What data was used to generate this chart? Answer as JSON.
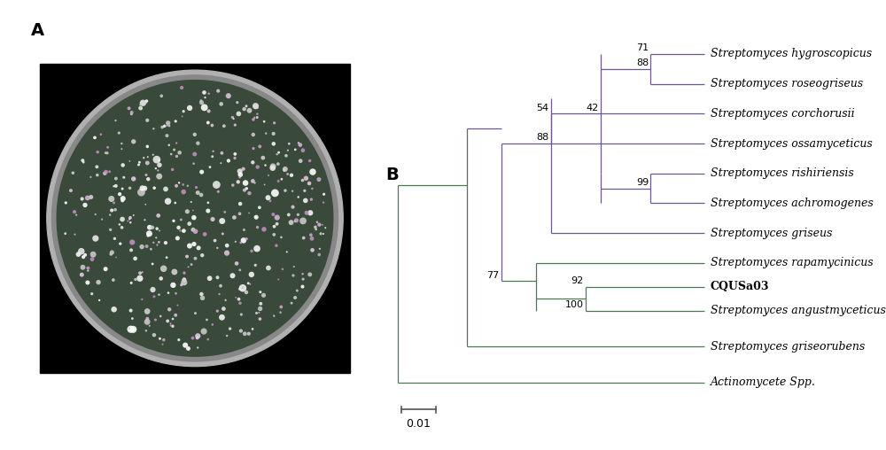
{
  "panel_A_label": "A",
  "panel_B_label": "B",
  "tree_line_color": "#5a5a7a",
  "tree_line_color2": "#4a7a4a",
  "background_color": "#ffffff",
  "font_size": 9,
  "bold_taxa": [
    "CQUSa03"
  ],
  "italic_taxa": [
    "Streptomyces hygroscopicus",
    "Streptomyces roseogriseus",
    "Streptomyces corchorusii",
    "Streptomyces ossamyceticus",
    "Streptomyces rishiriensis",
    "Streptomyces achromogenes",
    "Streptomyces griseus",
    "Streptomyces rapamycinicus",
    "Streptomyces angustmyceticus",
    "Streptomyces griseorubens",
    "Actinomycete Spp."
  ],
  "scale_bar_label": "0.01",
  "petri_bg": "#000000",
  "petri_rim_outer": "#b0b0b0",
  "petri_rim_inner": "#888888",
  "petri_agar": "#3a4a3a",
  "colony_colors": [
    "#ffffff",
    "#e8e8e8",
    "#d0d0d0",
    "#f5f5f5",
    "#c8c8c8"
  ],
  "pink_colony_colors": [
    "#e8c8e8",
    "#d4a8d4",
    "#c890c8",
    "#f0d0f0",
    "#ddb8dd"
  ]
}
